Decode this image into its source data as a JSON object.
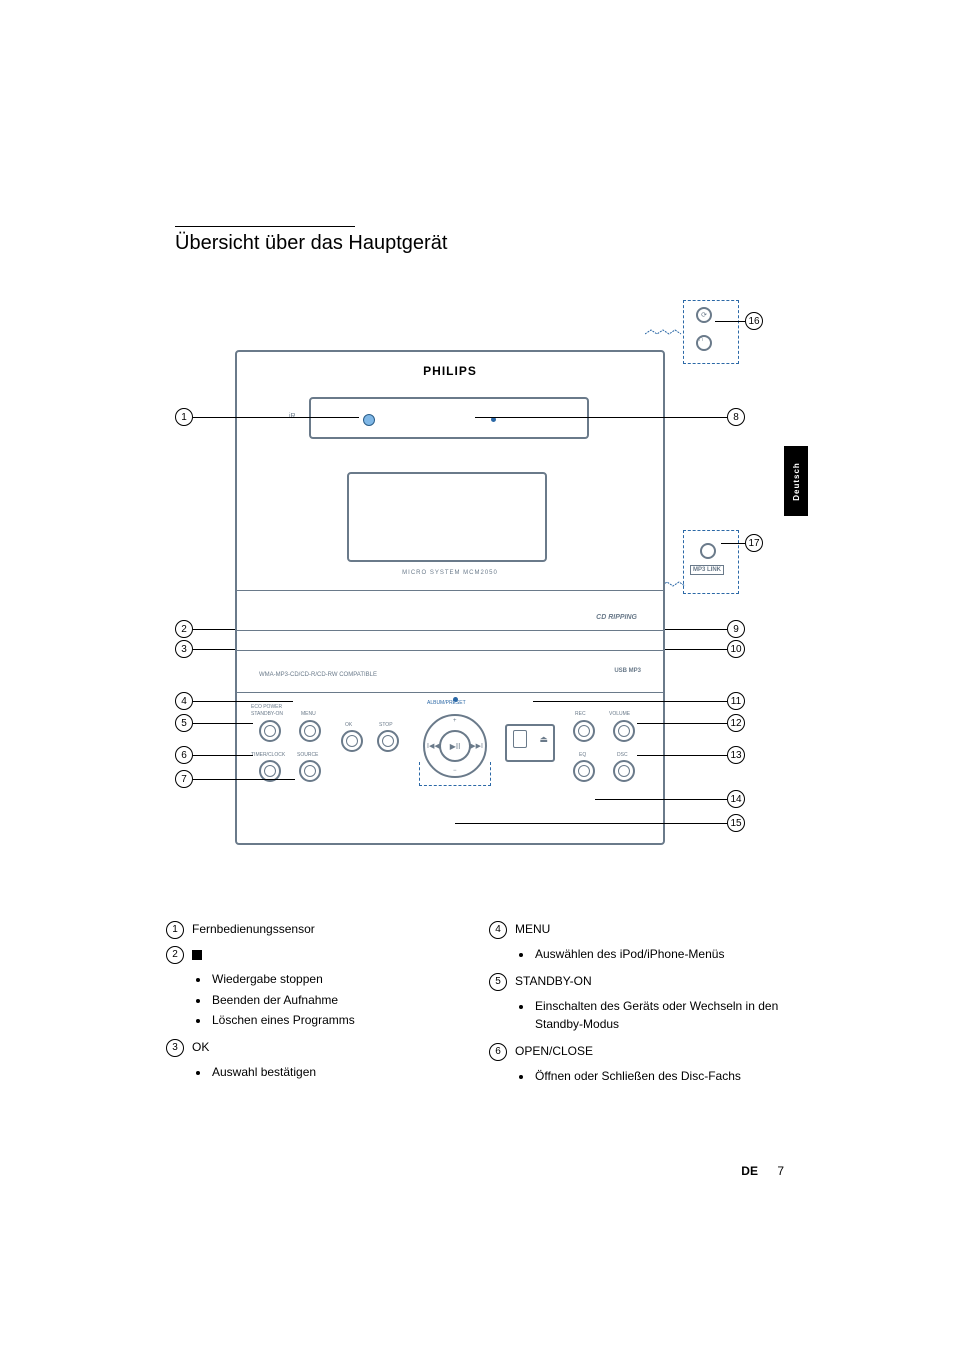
{
  "heading": "Übersicht über das Hauptgerät",
  "side_tab": "Deutsch",
  "brand": "PHILIPS",
  "micro_system_label": "MICRO SYSTEM MCM2050",
  "cd_ripping_label": "CD RIPPING",
  "wma_label": "WMA-MP3-CD/CD-R/CD-RW COMPATIBLE",
  "usb_label": "USB MP3",
  "mp3_link_label": "MP3 LINK",
  "ir_label": "iR",
  "control_labels": {
    "standby": "STANDBY-ON",
    "eco_power": "ECO POWER",
    "timer_clock": "TIMER/CLOCK",
    "menu": "MENU",
    "source": "SOURCE",
    "ok": "OK",
    "stop": "STOP",
    "album_preset": "ALBUM/PRESET",
    "rec": "REC",
    "volume": "VOLUME",
    "eq": "EQ",
    "dsc": "DSC",
    "play": "▶II",
    "prev": "I◀◀",
    "next": "▶▶I"
  },
  "callout_numbers": {
    "left": [
      "1",
      "2",
      "3",
      "4",
      "5",
      "6",
      "7"
    ],
    "right": [
      "8",
      "9",
      "10",
      "11",
      "12",
      "13",
      "14",
      "15",
      "16",
      "17"
    ]
  },
  "list_left": [
    {
      "num": "1",
      "title": "Fernbedienungssensor",
      "bullets": []
    },
    {
      "num": "2",
      "title": "STOP_ICON",
      "bullets": [
        "Wiedergabe stoppen",
        "Beenden der Aufnahme",
        "Löschen eines Programms"
      ]
    },
    {
      "num": "3",
      "title": "OK",
      "bullets": [
        "Auswahl bestätigen"
      ]
    }
  ],
  "list_right": [
    {
      "num": "4",
      "title": "MENU",
      "bullets": [
        "Auswählen des iPod/iPhone-Menüs"
      ]
    },
    {
      "num": "5",
      "title": "STANDBY-ON",
      "bullets": [
        "Einschalten des Geräts oder Wechseln in den Standby-Modus"
      ]
    },
    {
      "num": "6",
      "title": "OPEN/CLOSE",
      "bullets": [
        "Öffnen oder Schließen des Disc-Fachs"
      ]
    }
  ],
  "footer": {
    "lang": "DE",
    "page": "7"
  },
  "colors": {
    "outline": "#6a7a8a",
    "blue_accent": "#2b68a6",
    "light_blue": "#7fb7e6"
  }
}
